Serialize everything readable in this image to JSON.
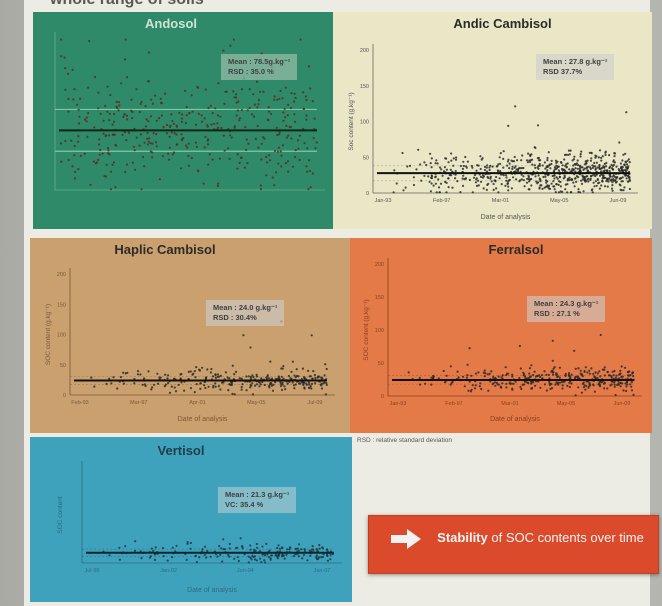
{
  "slide": {
    "heading": "whole range of soils",
    "footnote": "RSD : relative standard deviation",
    "callout_bold": "Stability",
    "callout_rest": " of SOC contents over time",
    "colors": {
      "andosol": "#2e8a68",
      "andic": "#e9e7c6",
      "haplic": "#c9a06e",
      "ferralsol": "#e47a48",
      "vertisol": "#3fa2bc",
      "callout": "#dc4a2c"
    }
  },
  "chart_data": [
    {
      "type": "scatter",
      "title": "Andosol",
      "stats": [
        "Mean : 78.5g.kg⁻¹",
        "RSD : 35.0 %"
      ],
      "ylim": [
        0,
        200
      ],
      "yticks": [],
      "xticks": [],
      "xlabel": "",
      "ylabel": "",
      "mean": 78.5,
      "sd_band": [
        51,
        106
      ],
      "n_points": 400
    },
    {
      "type": "scatter",
      "title": "Andic Cambisol",
      "stats": [
        "Mean : 27.8 g.kg⁻¹",
        "RSD   37.7%"
      ],
      "ylim": [
        0,
        200
      ],
      "yticks": [
        "200",
        "150",
        "100",
        "50",
        "0"
      ],
      "xticks": [
        "Jan-93",
        "Feb-97",
        "Mar-01",
        "May-05",
        "Jun-09"
      ],
      "xlabel": "Date of analysis",
      "ylabel": "Soc content (g.kg⁻¹)",
      "mean": 27.8,
      "sd_band": [
        17,
        38
      ],
      "n_points": 700
    },
    {
      "type": "scatter",
      "title": "Haplic Cambisol",
      "stats": [
        "Mean : 24.0 g.kg⁻¹",
        "RSD : 30.4%"
      ],
      "ylim": [
        0,
        200
      ],
      "yticks": [
        "200",
        "150",
        "100",
        "50",
        "0"
      ],
      "xticks": [
        "Feb-93",
        "Mar-97",
        "Apr-01",
        "May-05",
        "Jul-09"
      ],
      "xlabel": "Date of analysis",
      "ylabel": "SOC content (g.kg⁻¹)",
      "mean": 24.0,
      "sd_band": [
        17,
        31
      ],
      "n_points": 300
    },
    {
      "type": "scatter",
      "title": "Ferralsol",
      "stats": [
        "Mean : 24.3 g.kg⁻¹",
        "RSD : 27.1 %"
      ],
      "ylim": [
        0,
        200
      ],
      "yticks": [
        "200",
        "150",
        "100",
        "50",
        "0"
      ],
      "xticks": [
        "Jan-93",
        "Feb-97",
        "Mar-01",
        "May-05",
        "Jun-09"
      ],
      "xlabel": "Date of analysis",
      "ylabel": "SOC content (g.kg⁻¹)",
      "mean": 24.3,
      "sd_band": [
        18,
        31
      ],
      "n_points": 350
    },
    {
      "type": "scatter",
      "title": "Vertisol",
      "stats": [
        "Mean : 21.3 g.kg⁻¹",
        "VC: 35.4 %"
      ],
      "ylim": [
        0,
        200
      ],
      "yticks": [],
      "xticks": [
        "Jul-98",
        "Jan-02",
        "Jun-04",
        "Jan-07"
      ],
      "xlabel": "Date of analysis",
      "ylabel": "SOC content",
      "mean": 21.3,
      "sd_band": [
        14,
        29
      ],
      "n_points": 200
    }
  ]
}
